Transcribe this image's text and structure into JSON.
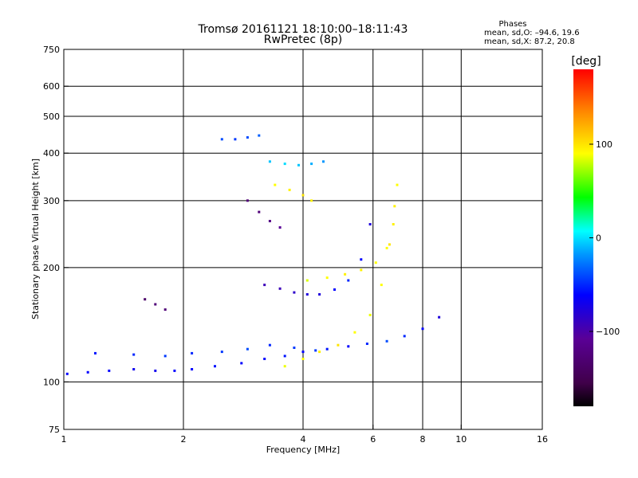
{
  "header": {
    "title": "Tromsø 20161121 18:10:00–18:11:43",
    "subtitle": "RwPretec (8p)"
  },
  "phases": {
    "heading": "Phases",
    "o_line": "mean, sd,O: –94.6, 19.6",
    "x_line": "mean, sd,X:  87.2, 20.8"
  },
  "colorbar": {
    "unit_label": "[deg]",
    "ticks": [
      {
        "value": 100,
        "label": "100"
      },
      {
        "value": 0,
        "label": "0"
      },
      {
        "value": -100,
        "label": "−100"
      }
    ],
    "range": [
      -180,
      180
    ]
  },
  "chart_data": {
    "type": "scatter",
    "title": "Tromsø 20161121 18:10:00–18:11:43",
    "subtitle": "RwPretec (8p)",
    "xlabel": "Frequency [MHz]",
    "ylabel": "Stationary phase Virtual Height [km]",
    "xscale": "log",
    "yscale": "log",
    "xlim": [
      1,
      16
    ],
    "ylim": [
      75,
      750
    ],
    "xticks": [
      1,
      2,
      4,
      6,
      8,
      10,
      16
    ],
    "xtick_labels": [
      "1",
      "2",
      "4",
      "6",
      "8",
      "10",
      "16"
    ],
    "yticks": [
      75,
      100,
      200,
      300,
      400,
      500,
      600,
      750
    ],
    "ytick_labels": [
      "75",
      "100",
      "200",
      "300",
      "400",
      "500",
      "600",
      "750"
    ],
    "xgrid": [
      2,
      4,
      6,
      8,
      10
    ],
    "ygrid": [
      100,
      200,
      300,
      400,
      500,
      600
    ],
    "grid": true,
    "colorscale": "rainbow (black → purple → blue → cyan → green → yellow → orange → red)",
    "color_range_deg": [
      -180,
      180
    ],
    "series": [
      {
        "x": [
          1.02,
          1.15,
          1.3,
          1.5,
          1.7,
          1.9,
          2.1,
          2.4,
          2.8,
          3.2,
          3.6,
          4.0,
          4.6,
          5.2,
          5.8,
          6.5,
          7.2,
          8.0,
          8.8
        ],
        "y": [
          105,
          106,
          107,
          108,
          107,
          107,
          108,
          110,
          112,
          115,
          117,
          120,
          122,
          124,
          126,
          128,
          132,
          138,
          148
        ],
        "phase": [
          -100,
          -100,
          -100,
          -105,
          -105,
          -100,
          -100,
          -95,
          -100,
          -100,
          -95,
          -100,
          -95,
          -100,
          -90,
          -80,
          -90,
          -100,
          -110
        ]
      },
      {
        "x": [
          1.2,
          1.5,
          1.8,
          2.1,
          2.5,
          2.9,
          3.3,
          3.8,
          4.3
        ],
        "y": [
          119,
          118,
          117,
          119,
          120,
          122,
          125,
          123,
          121
        ],
        "phase": [
          -95,
          -90,
          -85,
          -90,
          -85,
          -80,
          -90,
          -85,
          -85
        ]
      },
      {
        "x": [
          3.6,
          4.0,
          4.4,
          4.9,
          5.4,
          5.9,
          6.3,
          6.6,
          6.8
        ],
        "y": [
          110,
          115,
          120,
          125,
          135,
          150,
          180,
          230,
          290
        ],
        "phase": [
          85,
          90,
          95,
          100,
          90,
          85,
          90,
          100,
          95
        ]
      },
      {
        "x": [
          4.1,
          4.6,
          5.1,
          5.6,
          6.1,
          6.5,
          6.75,
          6.9
        ],
        "y": [
          185,
          188,
          192,
          197,
          206,
          225,
          260,
          330
        ],
        "phase": [
          80,
          90,
          95,
          95,
          90,
          90,
          95,
          90
        ]
      },
      {
        "x": [
          3.2,
          3.5,
          3.8,
          4.1,
          4.4,
          4.8,
          5.2,
          5.6,
          5.9
        ],
        "y": [
          180,
          176,
          172,
          170,
          170,
          175,
          185,
          210,
          260
        ],
        "phase": [
          -120,
          -120,
          -115,
          -110,
          -110,
          -100,
          -90,
          -100,
          -110
        ]
      },
      {
        "x": [
          3.3,
          3.6,
          3.9,
          4.2,
          4.5
        ],
        "y": [
          380,
          375,
          372,
          375,
          380
        ],
        "phase": [
          -40,
          -30,
          -40,
          -50,
          -60
        ]
      },
      {
        "x": [
          3.4,
          3.7,
          4.0,
          4.2
        ],
        "y": [
          330,
          320,
          310,
          300
        ],
        "phase": [
          90,
          95,
          100,
          95
        ]
      },
      {
        "x": [
          2.9,
          3.1,
          3.3,
          3.5
        ],
        "y": [
          300,
          280,
          265,
          255
        ],
        "phase": [
          -140,
          -140,
          -135,
          -130
        ]
      },
      {
        "x": [
          1.6,
          1.7,
          1.8
        ],
        "y": [
          165,
          160,
          155
        ],
        "phase": [
          -145,
          -140,
          -140
        ]
      },
      {
        "x": [
          2.5,
          2.7,
          2.9,
          3.1
        ],
        "y": [
          435,
          435,
          440,
          445
        ],
        "phase": [
          -80,
          -85,
          -80,
          -75
        ]
      }
    ]
  }
}
